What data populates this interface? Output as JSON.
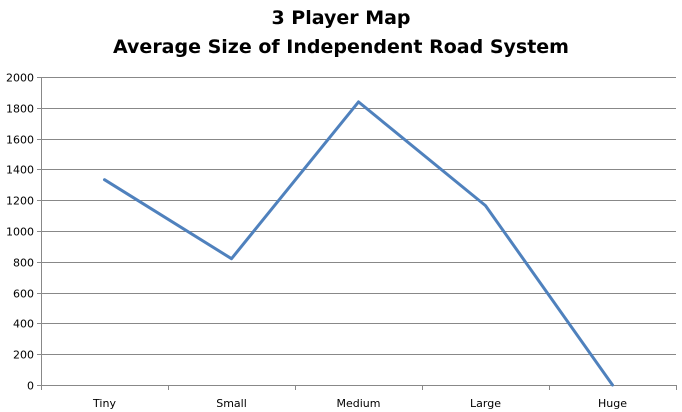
{
  "chart_data": {
    "type": "line",
    "title_lines": [
      "3 Player Map",
      "Average Size of Independent Road System"
    ],
    "categories": [
      "Tiny",
      "Small",
      "Medium",
      "Large",
      "Huge"
    ],
    "series": [
      {
        "values": [
          1333,
          820,
          1838,
          1165,
          0
        ]
      }
    ],
    "ylim": [
      0,
      2000
    ],
    "yticks": [
      0,
      200,
      400,
      600,
      800,
      1000,
      1200,
      1400,
      1600,
      1800,
      2000
    ],
    "grid": true,
    "legend": "none",
    "colors": {
      "line": "#4f81bd",
      "grid": "#888888",
      "axis": "#888888"
    }
  }
}
